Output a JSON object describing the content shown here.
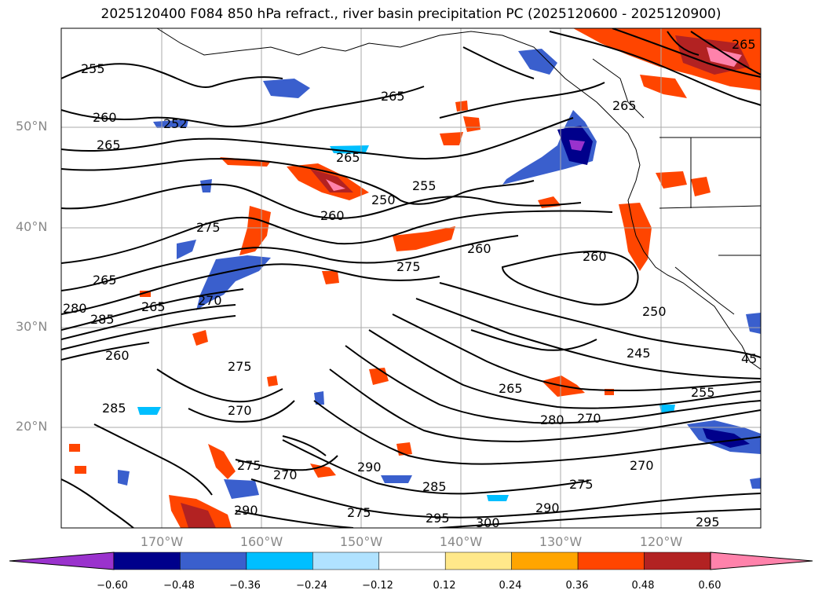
{
  "title": "2025120400 F084 850 hPa refract., river basin precipitation PC (2025120600 - 2025120900)",
  "lat_labels": [
    "50°N",
    "40°N",
    "30°N",
    "20°N"
  ],
  "lon_labels": [
    "170°W",
    "160°W",
    "150°W",
    "140°W",
    "130°W",
    "120°W"
  ],
  "colorbar": {
    "ticks": [
      "−0.60",
      "−0.48",
      "−0.36",
      "−0.24",
      "−0.12",
      "0.12",
      "0.24",
      "0.36",
      "0.48",
      "0.60"
    ],
    "colors": [
      "#9a32cd",
      "#00008b",
      "#3a5fcd",
      "#00bfff",
      "#b0e2ff",
      "#ffffff",
      "#ffe88a",
      "#ffa500",
      "#ff4500",
      "#b22222",
      "#ff82ab"
    ]
  },
  "contour_labels": [
    "255",
    "265",
    "260",
    "265",
    "252",
    "265",
    "250",
    "255",
    "260",
    "265",
    "275",
    "260",
    "260",
    "250",
    "245",
    "275",
    "265",
    "280",
    "285",
    "260",
    "265",
    "270",
    "275",
    "270",
    "285",
    "265",
    "280",
    "270",
    "255",
    "275",
    "270",
    "290",
    "285",
    "275",
    "290",
    "295",
    "300",
    "295",
    "275",
    "290",
    "270",
    "265",
    "45"
  ]
}
